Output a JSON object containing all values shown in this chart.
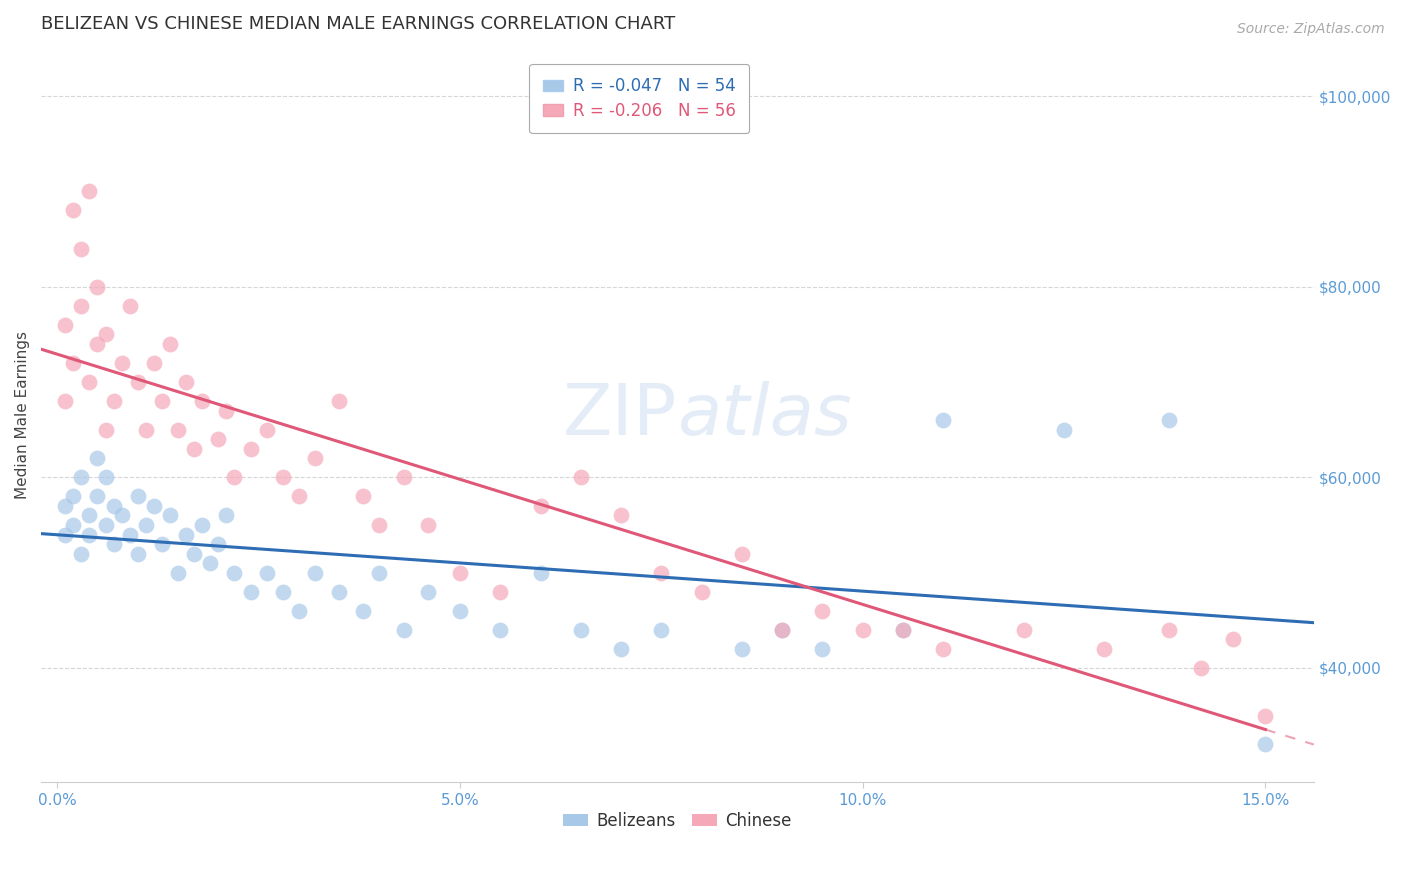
{
  "title": "BELIZEAN VS CHINESE MEDIAN MALE EARNINGS CORRELATION CHART",
  "source": "Source: ZipAtlas.com",
  "ylabel": "Median Male Earnings",
  "watermark": "ZIPatlas",
  "belizean_R": -0.047,
  "belizean_N": 54,
  "chinese_R": -0.206,
  "chinese_N": 56,
  "belizean_color": "#a8c8e8",
  "chinese_color": "#f4a8b8",
  "belizean_line_color": "#2e6db4",
  "chinese_line_color": "#e05878",
  "ylim_min": 28000,
  "ylim_max": 105000,
  "xlim_min": -0.002,
  "xlim_max": 0.156,
  "yticks": [
    40000,
    60000,
    80000,
    100000
  ],
  "ytick_labels": [
    "$40,000",
    "$60,000",
    "$80,000",
    "$100,000"
  ],
  "xticks": [
    0.0,
    0.05,
    0.1,
    0.15
  ],
  "xtick_labels": [
    "0.0%",
    "5.0%",
    "10.0%",
    "15.0%"
  ],
  "belizean_x": [
    0.001,
    0.001,
    0.002,
    0.002,
    0.003,
    0.003,
    0.004,
    0.004,
    0.005,
    0.005,
    0.006,
    0.006,
    0.007,
    0.007,
    0.008,
    0.009,
    0.01,
    0.01,
    0.011,
    0.012,
    0.013,
    0.014,
    0.015,
    0.016,
    0.017,
    0.018,
    0.019,
    0.02,
    0.021,
    0.022,
    0.024,
    0.026,
    0.028,
    0.03,
    0.032,
    0.035,
    0.038,
    0.04,
    0.043,
    0.046,
    0.05,
    0.055,
    0.06,
    0.065,
    0.07,
    0.075,
    0.085,
    0.09,
    0.095,
    0.105,
    0.11,
    0.125,
    0.138,
    0.15
  ],
  "belizean_y": [
    54000,
    57000,
    55000,
    58000,
    60000,
    52000,
    56000,
    54000,
    62000,
    58000,
    55000,
    60000,
    57000,
    53000,
    56000,
    54000,
    58000,
    52000,
    55000,
    57000,
    53000,
    56000,
    50000,
    54000,
    52000,
    55000,
    51000,
    53000,
    56000,
    50000,
    48000,
    50000,
    48000,
    46000,
    50000,
    48000,
    46000,
    50000,
    44000,
    48000,
    46000,
    44000,
    50000,
    44000,
    42000,
    44000,
    42000,
    44000,
    42000,
    44000,
    66000,
    65000,
    66000,
    32000
  ],
  "chinese_x": [
    0.001,
    0.001,
    0.002,
    0.002,
    0.003,
    0.003,
    0.004,
    0.004,
    0.005,
    0.005,
    0.006,
    0.006,
    0.007,
    0.008,
    0.009,
    0.01,
    0.011,
    0.012,
    0.013,
    0.014,
    0.015,
    0.016,
    0.017,
    0.018,
    0.02,
    0.021,
    0.022,
    0.024,
    0.026,
    0.028,
    0.03,
    0.032,
    0.035,
    0.038,
    0.04,
    0.043,
    0.046,
    0.05,
    0.055,
    0.06,
    0.065,
    0.07,
    0.075,
    0.08,
    0.085,
    0.09,
    0.095,
    0.1,
    0.105,
    0.11,
    0.12,
    0.13,
    0.138,
    0.142,
    0.146,
    0.15
  ],
  "chinese_y": [
    76000,
    68000,
    88000,
    72000,
    78000,
    84000,
    90000,
    70000,
    74000,
    80000,
    65000,
    75000,
    68000,
    72000,
    78000,
    70000,
    65000,
    72000,
    68000,
    74000,
    65000,
    70000,
    63000,
    68000,
    64000,
    67000,
    60000,
    63000,
    65000,
    60000,
    58000,
    62000,
    68000,
    58000,
    55000,
    60000,
    55000,
    50000,
    48000,
    57000,
    60000,
    56000,
    50000,
    48000,
    52000,
    44000,
    46000,
    44000,
    44000,
    42000,
    44000,
    42000,
    44000,
    40000,
    43000,
    35000
  ],
  "grid_color": "#cccccc",
  "background_color": "#ffffff",
  "title_fontsize": 13,
  "axis_label_fontsize": 11,
  "tick_fontsize": 11,
  "legend_fontsize": 12,
  "tick_color": "#5b9bd5"
}
